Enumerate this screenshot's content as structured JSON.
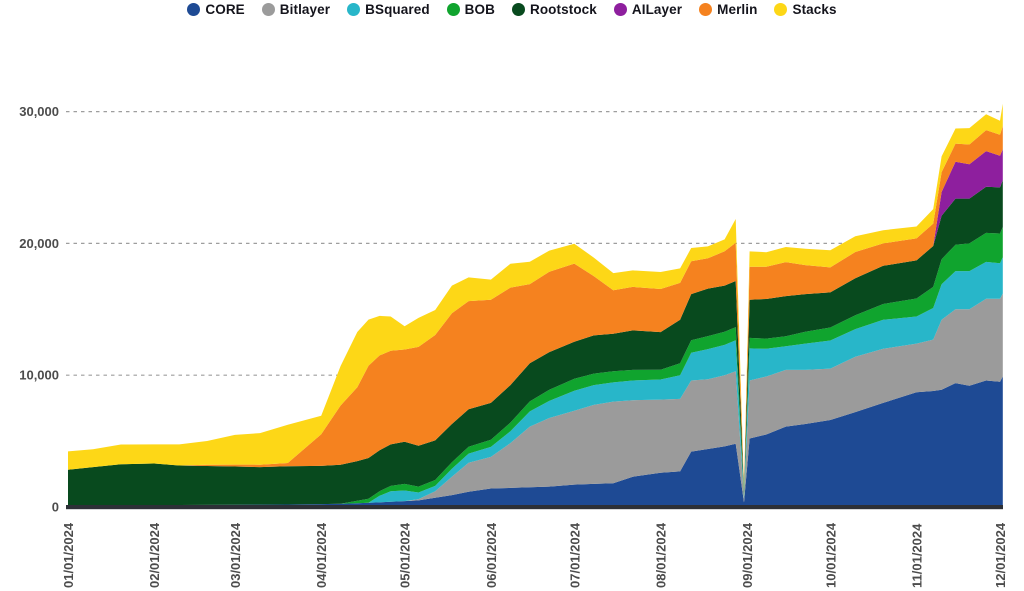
{
  "chart_data": {
    "type": "area",
    "stacked": true,
    "title": "",
    "xlabel": "",
    "ylabel": "",
    "ylim": [
      0,
      32000
    ],
    "grid": "dashed-horizontal",
    "legend_position": "top-center",
    "yticks": [
      0,
      10000,
      20000,
      30000
    ],
    "ytick_labels": [
      "0",
      "10,000",
      "20,000",
      "30,000"
    ],
    "xticks": [
      "01/01/2024",
      "02/01/2024",
      "03/01/2024",
      "04/01/2024",
      "05/01/2024",
      "06/01/2024",
      "07/01/2024",
      "08/01/2024",
      "09/01/2024",
      "10/01/2024",
      "11/01/2024",
      "12/01/2024"
    ],
    "colors": {
      "background": "#ffffff",
      "axis_bar": "#2d3037",
      "gridline": "#9e9e9e",
      "tick_label": "#4c4c4c",
      "legend_text": "#14141c"
    },
    "x": [
      "01/01/2024",
      "01/10/2024",
      "01/20/2024",
      "02/01/2024",
      "02/10/2024",
      "02/20/2024",
      "03/01/2024",
      "03/10/2024",
      "03/20/2024",
      "04/01/2024",
      "04/08/2024",
      "04/14/2024",
      "04/18/2024",
      "04/22/2024",
      "04/26/2024",
      "05/01/2024",
      "05/06/2024",
      "05/12/2024",
      "05/18/2024",
      "05/24/2024",
      "06/01/2024",
      "06/08/2024",
      "06/15/2024",
      "06/22/2024",
      "07/01/2024",
      "07/08/2024",
      "07/15/2024",
      "07/22/2024",
      "08/01/2024",
      "08/08/2024",
      "08/12/2024",
      "08/18/2024",
      "08/24/2024",
      "08/28/2024",
      "08/31/2024",
      "09/02/2024",
      "09/08/2024",
      "09/15/2024",
      "09/22/2024",
      "10/01/2024",
      "10/10/2024",
      "10/20/2024",
      "11/01/2024",
      "11/07/2024",
      "11/10/2024",
      "11/15/2024",
      "11/20/2024",
      "11/26/2024",
      "12/01/2024",
      "12/02/2024"
    ],
    "series": [
      {
        "name": "CORE",
        "color": "#1e4a94",
        "values": [
          120,
          130,
          140,
          150,
          150,
          160,
          170,
          180,
          190,
          220,
          250,
          280,
          320,
          350,
          400,
          450,
          500,
          700,
          900,
          1150,
          1400,
          1450,
          1500,
          1550,
          1700,
          1750,
          1800,
          2300,
          2600,
          2700,
          4200,
          4400,
          4600,
          4800,
          350,
          5200,
          5500,
          6100,
          6300,
          6600,
          7200,
          7900,
          8700,
          8800,
          8900,
          9400,
          9200,
          9600,
          9500,
          9900
        ]
      },
      {
        "name": "Bitlayer",
        "color": "#9b9b9b",
        "values": [
          0,
          0,
          0,
          0,
          0,
          0,
          0,
          0,
          0,
          0,
          0,
          0,
          0,
          0,
          0,
          0,
          100,
          500,
          1400,
          2200,
          2400,
          3400,
          4600,
          5200,
          5600,
          6000,
          6200,
          5800,
          5550,
          5500,
          5400,
          5300,
          5400,
          5500,
          250,
          4400,
          4400,
          4300,
          4100,
          3900,
          4200,
          4100,
          3700,
          3900,
          5300,
          5600,
          5800,
          6200,
          6300,
          6300
        ]
      },
      {
        "name": "BSquared",
        "color": "#28b6c9",
        "values": [
          0,
          0,
          0,
          0,
          0,
          0,
          0,
          0,
          0,
          0,
          0,
          0,
          0,
          500,
          800,
          800,
          500,
          400,
          600,
          700,
          760,
          900,
          1150,
          1300,
          1520,
          1500,
          1450,
          1500,
          1520,
          1800,
          2100,
          2280,
          2300,
          2350,
          180,
          2430,
          2100,
          1800,
          2000,
          2130,
          2100,
          2200,
          2050,
          2400,
          2700,
          2900,
          2900,
          2800,
          2700,
          2750
        ]
      },
      {
        "name": "BOB",
        "color": "#10a42e",
        "values": [
          0,
          0,
          0,
          0,
          0,
          0,
          0,
          0,
          0,
          0,
          0,
          200,
          300,
          350,
          400,
          500,
          450,
          450,
          500,
          520,
          540,
          650,
          760,
          850,
          910,
          870,
          850,
          800,
          750,
          900,
          950,
          990,
          1000,
          1000,
          120,
          800,
          780,
          760,
          900,
          990,
          1050,
          1200,
          1370,
          1600,
          1900,
          2000,
          2100,
          2200,
          2250,
          2300
        ]
      },
      {
        "name": "Rootstock",
        "color": "#084a1e",
        "values": [
          2700,
          2900,
          3100,
          3150,
          3000,
          2950,
          2900,
          2850,
          2900,
          2900,
          2950,
          3000,
          3100,
          3100,
          3150,
          3200,
          3100,
          3000,
          2900,
          2850,
          2800,
          2850,
          2900,
          2850,
          2810,
          2900,
          2850,
          3000,
          2850,
          3300,
          3500,
          3600,
          3500,
          3500,
          280,
          2900,
          3000,
          3040,
          2850,
          2660,
          2800,
          2900,
          2890,
          3100,
          3300,
          3500,
          3400,
          3500,
          3500,
          3550
        ]
      },
      {
        "name": "AILayer",
        "color": "#8e1f9e",
        "values": [
          0,
          0,
          0,
          0,
          0,
          0,
          0,
          0,
          0,
          0,
          0,
          0,
          0,
          0,
          0,
          0,
          0,
          0,
          0,
          0,
          0,
          0,
          0,
          0,
          0,
          0,
          0,
          0,
          0,
          0,
          0,
          0,
          0,
          0,
          0,
          0,
          0,
          0,
          0,
          0,
          0,
          0,
          0,
          0,
          1800,
          2800,
          2600,
          2700,
          2400,
          2350
        ]
      },
      {
        "name": "Merlin",
        "color": "#f5821f",
        "values": [
          0,
          0,
          0,
          0,
          0,
          100,
          150,
          180,
          250,
          2400,
          4500,
          5600,
          7000,
          7200,
          7100,
          7000,
          7500,
          8000,
          8400,
          8200,
          7830,
          7400,
          6000,
          6100,
          5930,
          4500,
          3300,
          3300,
          3270,
          2800,
          2500,
          2300,
          2600,
          2900,
          220,
          2500,
          2450,
          2580,
          2200,
          1900,
          2000,
          1700,
          1670,
          1700,
          1500,
          1370,
          1500,
          1600,
          1600,
          1750
        ]
      },
      {
        "name": "Stacks",
        "color": "#fdd717",
        "values": [
          1400,
          1350,
          1500,
          1450,
          1600,
          1800,
          2250,
          2400,
          2900,
          1400,
          3000,
          4200,
          3500,
          3000,
          2600,
          1770,
          2200,
          1900,
          2100,
          1800,
          1520,
          1800,
          1700,
          1600,
          1510,
          1400,
          1300,
          1250,
          1290,
          1100,
          1000,
          900,
          900,
          1800,
          180,
          1160,
          1100,
          1150,
          1250,
          1300,
          1200,
          1000,
          900,
          1100,
          1200,
          1150,
          1250,
          1200,
          1050,
          1700
        ]
      }
    ]
  }
}
